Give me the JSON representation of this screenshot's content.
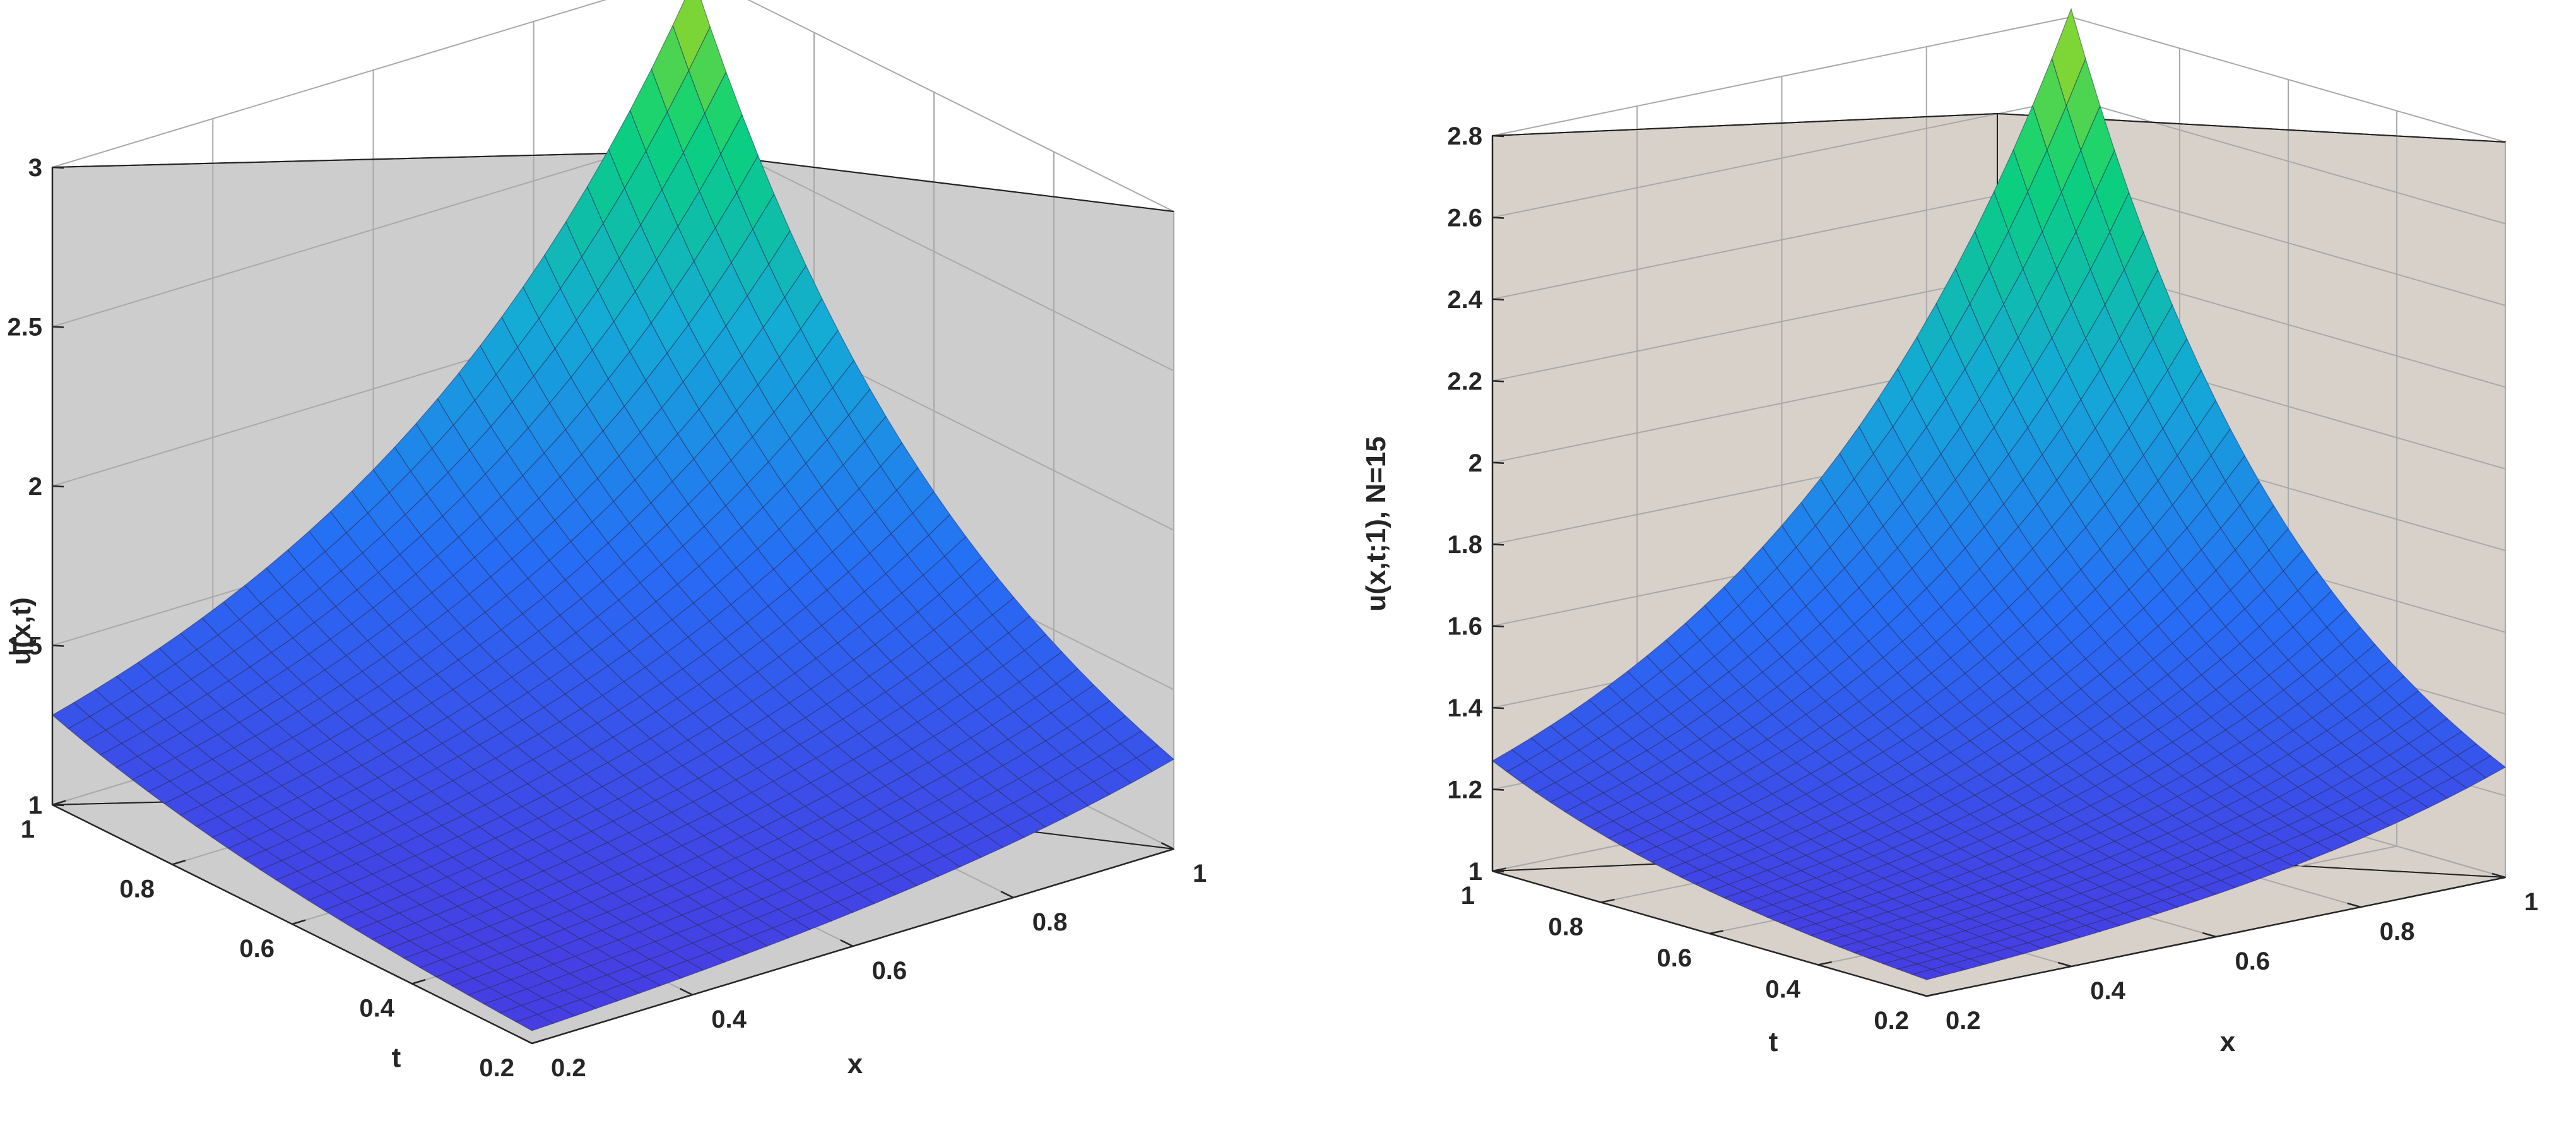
{
  "chart_data": [
    {
      "type": "surface",
      "xlabel": "x",
      "ylabel": "t",
      "zlabel": "u(x,t)",
      "xlim": [
        0.2,
        1
      ],
      "ylim": [
        0.2,
        1
      ],
      "zlim": [
        1,
        3
      ],
      "x_ticks": [
        "0.2",
        "0.4",
        "0.6",
        "0.8",
        "1"
      ],
      "t_ticks": [
        "0.2",
        "0.4",
        "0.6",
        "0.8",
        "1"
      ],
      "z_ticks": [
        "1",
        "1.5",
        "2",
        "2.5",
        "3"
      ],
      "grid": true,
      "pane_color": "#cdcdcd",
      "colormap": "winter-to-yellow",
      "surface": {
        "x_range": [
          0.2,
          1
        ],
        "t_range": [
          0.2,
          1
        ],
        "grid_points": 31,
        "min_value": 1.04,
        "max_value": 2.98,
        "peak_at": {
          "x": 1,
          "t": 1,
          "u": 2.98
        }
      }
    },
    {
      "type": "surface",
      "xlabel": "x",
      "ylabel": "t",
      "zlabel": "u(x,t;1), N=15",
      "xlim": [
        0.2,
        1
      ],
      "ylim": [
        0.2,
        1
      ],
      "zlim": [
        1,
        2.8
      ],
      "x_ticks": [
        "0.2",
        "0.4",
        "0.6",
        "0.8",
        "1"
      ],
      "t_ticks": [
        "0.2",
        "0.4",
        "0.6",
        "0.8",
        "1"
      ],
      "z_ticks": [
        "1",
        "1.2",
        "1.4",
        "1.6",
        "1.8",
        "2",
        "2.2",
        "2.4",
        "2.6",
        "2.8"
      ],
      "grid": true,
      "pane_color": "#d8d1ca",
      "colormap": "winter-to-yellow",
      "surface": {
        "x_range": [
          0.2,
          1
        ],
        "t_range": [
          0.2,
          1
        ],
        "grid_points": 31,
        "min_value": 1.04,
        "max_value": 2.82,
        "peak_at": {
          "x": 1,
          "t": 1,
          "u": 2.82
        }
      }
    }
  ]
}
